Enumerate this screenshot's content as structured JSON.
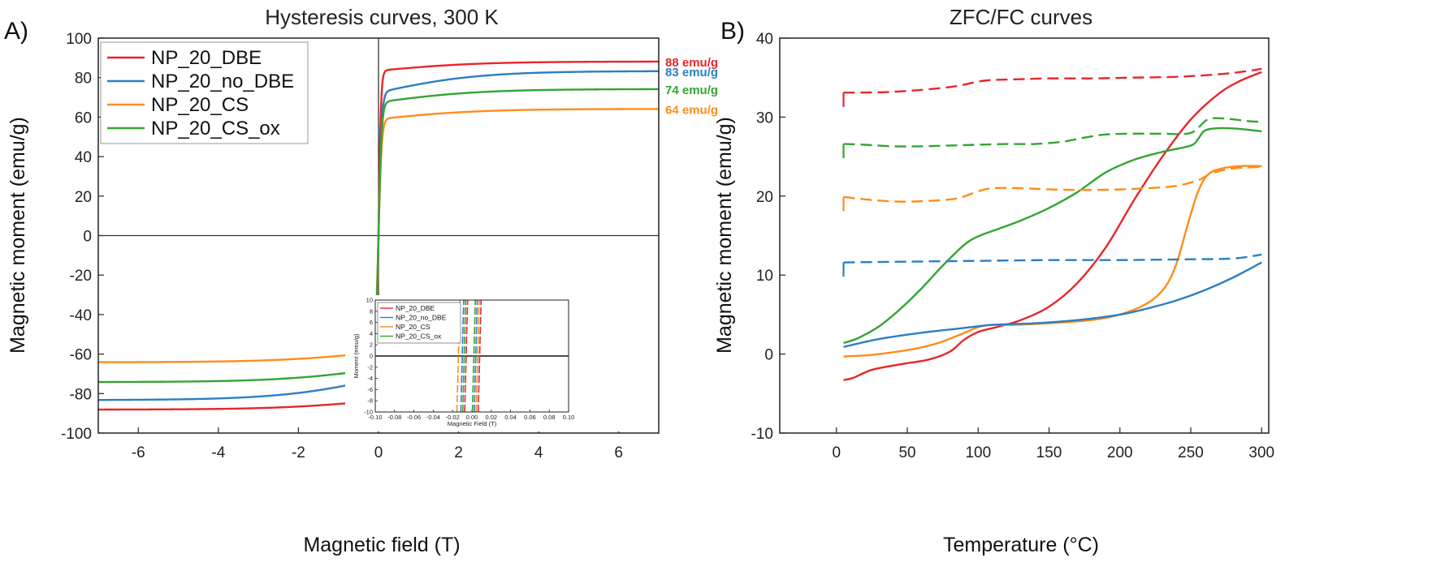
{
  "figure": {
    "panel_a_letter": "A)",
    "panel_b_letter": "B)"
  },
  "chart_data": [
    {
      "type": "line",
      "title": "Hysteresis curves, 300 K",
      "xlabel": "Magnetic field (T)",
      "ylabel": "Magnetic moment (emu/g)",
      "xlim": [
        -7,
        7
      ],
      "ylim": [
        -100,
        100
      ],
      "xticks": [
        -6,
        -4,
        -2,
        0,
        2,
        4,
        6
      ],
      "yticks": [
        -100,
        -80,
        -60,
        -40,
        -20,
        0,
        20,
        40,
        60,
        80,
        100
      ],
      "zero_lines": true,
      "legend_position": "top-left",
      "series": [
        {
          "name": "NP_20_DBE",
          "color": "#e8262a",
          "ms": 88,
          "mid": 83.5,
          "width": 0.06,
          "end_label": "88 emu/g"
        },
        {
          "name": "NP_20_no_DBE",
          "color": "#2a7fc4",
          "ms": 83,
          "mid": 72.5,
          "width": 0.08,
          "end_label": "83 emu/g"
        },
        {
          "name": "NP_20_CS",
          "color": "#ff8c1a",
          "ms": 64,
          "mid": 59,
          "width": 0.08,
          "end_label": "64 emu/g"
        },
        {
          "name": "NP_20_CS_ox",
          "color": "#33a532",
          "ms": 74,
          "mid": 67.5,
          "width": 0.08,
          "end_label": "74 emu/g"
        }
      ],
      "inset": {
        "xlabel": "Magnetic Field (T)",
        "ylabel": "Moment (emu/g)",
        "xlim": [
          -0.1,
          0.1
        ],
        "ylim": [
          -10,
          10
        ],
        "xticks": [
          "-0.10",
          "-0.08",
          "-0.06",
          "-0.04",
          "-0.02",
          "0.00",
          "0.02",
          "0.04",
          "0.06",
          "0.08",
          "0.10"
        ],
        "yticks": [
          "10",
          "8",
          "6",
          "4",
          "2",
          "0",
          "-2",
          "-4",
          "-6",
          "-8",
          "-10"
        ],
        "legend": [
          "NP_20_DBE",
          "NP_20_no_DBE",
          "NP_20_CS",
          "NP_20_CS_ox"
        ]
      }
    },
    {
      "type": "line",
      "title": "ZFC/FC curves",
      "xlabel": "Temperature (°C)",
      "ylabel": "Magnetic moment (emu/g)",
      "xlim": [
        -40,
        305
      ],
      "ylim": [
        -10,
        40
      ],
      "xticks": [
        0,
        50,
        100,
        150,
        200,
        250,
        300
      ],
      "yticks": [
        -10,
        0,
        10,
        20,
        30,
        40
      ],
      "series": [
        {
          "name": "",
          "color": "#e8262a",
          "style": "solid",
          "x": [
            5,
            12,
            25,
            45,
            65,
            80,
            90,
            100,
            115,
            130,
            150,
            170,
            190,
            210,
            230,
            250,
            270,
            285,
            300
          ],
          "y": [
            -3.3,
            -3.0,
            -2.0,
            -1.3,
            -0.7,
            0.3,
            1.8,
            2.8,
            3.5,
            4.3,
            6.0,
            9.0,
            13.5,
            19.5,
            25.0,
            29.7,
            33.0,
            34.6,
            35.7
          ]
        },
        {
          "name": "",
          "color": "#e8262a",
          "style": "dashed",
          "x": [
            5,
            40,
            80,
            100,
            110,
            130,
            150,
            180,
            210,
            240,
            260,
            280,
            300
          ],
          "y": [
            33.1,
            33.2,
            33.8,
            34.5,
            34.7,
            34.8,
            34.9,
            34.9,
            35.0,
            35.1,
            35.3,
            35.6,
            36.1
          ]
        },
        {
          "name": "",
          "color": "#33a532",
          "style": "solid",
          "x": [
            5,
            15,
            30,
            45,
            60,
            75,
            90,
            100,
            115,
            130,
            150,
            170,
            190,
            210,
            230,
            250,
            255,
            260,
            270,
            285,
            300
          ],
          "y": [
            1.4,
            2.0,
            3.5,
            5.7,
            8.3,
            11.2,
            13.8,
            14.9,
            15.9,
            16.9,
            18.5,
            20.5,
            23.0,
            24.6,
            25.6,
            26.4,
            27.2,
            28.3,
            28.6,
            28.5,
            28.2
          ]
        },
        {
          "name": "",
          "color": "#33a532",
          "style": "dashed",
          "x": [
            5,
            20,
            40,
            60,
            80,
            100,
            120,
            140,
            160,
            175,
            190,
            210,
            230,
            250,
            262,
            275,
            290,
            300
          ],
          "y": [
            26.6,
            26.5,
            26.3,
            26.3,
            26.4,
            26.5,
            26.6,
            26.6,
            26.9,
            27.4,
            27.8,
            27.9,
            27.9,
            28.0,
            29.7,
            29.8,
            29.5,
            29.4
          ]
        },
        {
          "name": "",
          "color": "#ff8c1a",
          "style": "solid",
          "x": [
            5,
            25,
            50,
            70,
            85,
            100,
            110,
            125,
            150,
            180,
            200,
            220,
            232,
            240,
            248,
            255,
            262,
            272,
            285,
            300
          ],
          "y": [
            -0.3,
            -0.1,
            0.5,
            1.3,
            2.3,
            3.4,
            3.7,
            3.7,
            3.9,
            4.3,
            5.0,
            6.5,
            8.5,
            11.5,
            16.5,
            20.5,
            22.7,
            23.5,
            23.8,
            23.8
          ]
        },
        {
          "name": "",
          "color": "#ff8c1a",
          "style": "dashed",
          "x": [
            5,
            25,
            45,
            65,
            85,
            100,
            110,
            130,
            160,
            190,
            220,
            240,
            255,
            265,
            280,
            300
          ],
          "y": [
            19.9,
            19.5,
            19.3,
            19.4,
            19.7,
            20.6,
            21.0,
            21.0,
            20.8,
            20.8,
            21.0,
            21.3,
            22.0,
            22.9,
            23.5,
            23.7
          ]
        },
        {
          "name": "",
          "color": "#2a7fc4",
          "style": "solid",
          "x": [
            5,
            30,
            60,
            90,
            110,
            140,
            170,
            200,
            220,
            240,
            260,
            280,
            300
          ],
          "y": [
            0.9,
            1.9,
            2.7,
            3.3,
            3.7,
            3.9,
            4.3,
            5.0,
            5.8,
            6.8,
            8.1,
            9.7,
            11.6
          ]
        },
        {
          "name": "",
          "color": "#2a7fc4",
          "style": "dashed",
          "x": [
            5,
            50,
            100,
            150,
            200,
            250,
            280,
            300
          ],
          "y": [
            11.6,
            11.7,
            11.8,
            11.9,
            11.9,
            12.0,
            12.1,
            12.6
          ]
        }
      ]
    }
  ]
}
